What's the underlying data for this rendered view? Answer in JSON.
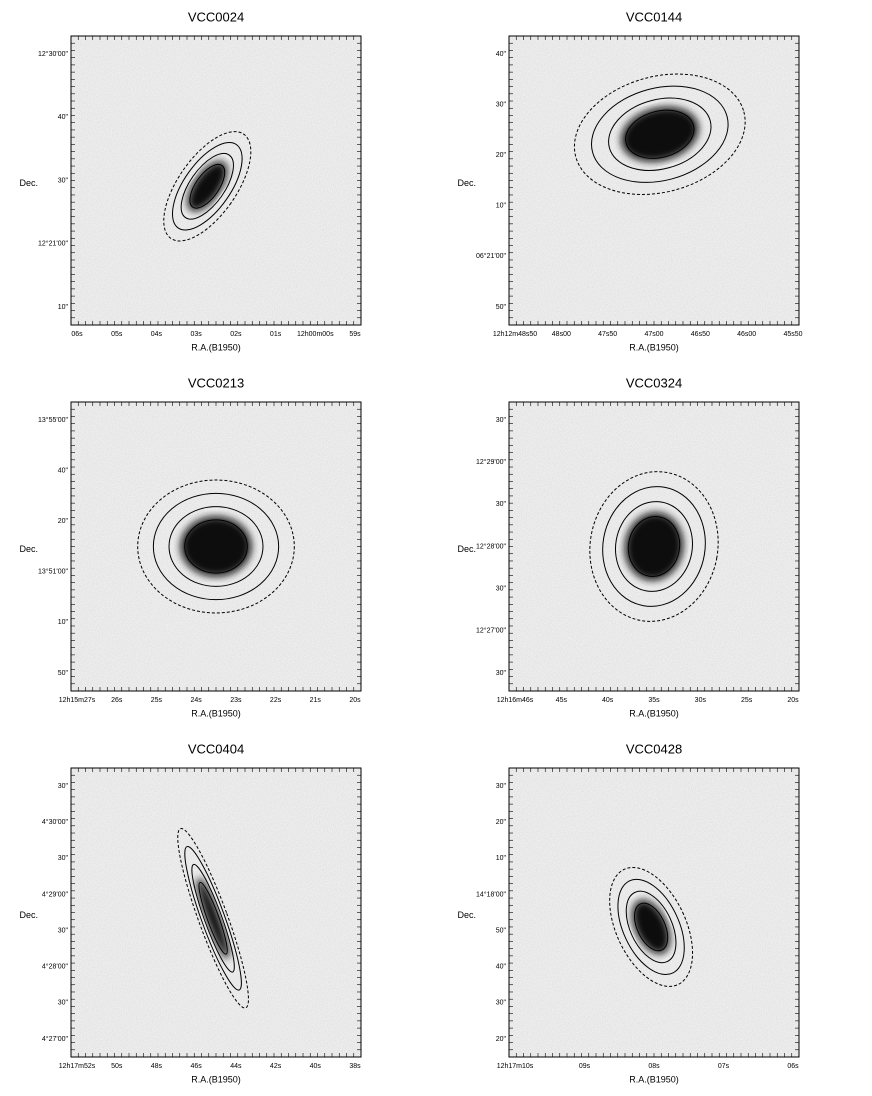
{
  "panels": [
    {
      "title": "VCC0024",
      "xlabel": "R.A.(B1950)",
      "ylabel": "Dec.",
      "xticks": [
        "06s",
        "05s",
        "04s",
        "03s",
        "02s",
        "01s",
        "12h00m00s",
        "59s"
      ],
      "yticks": [
        "12°30'00\"",
        "40\"",
        "30\"",
        "12°21'00\"",
        "10\""
      ]
    },
    {
      "title": "VCC0144",
      "xlabel": "R.A.(B1950)",
      "ylabel": "Dec.",
      "xticks": [
        "12h12m48s50",
        "48s00",
        "47s50",
        "47s00",
        "46s50",
        "46s00",
        "45s50"
      ],
      "yticks": [
        "40\"",
        "30\"",
        "20\"",
        "10\"",
        "06°21'00\"",
        "50\""
      ]
    },
    {
      "title": "VCC0213",
      "xlabel": "R.A.(B1950)",
      "ylabel": "Dec.",
      "xticks": [
        "12h15m27s",
        "26s",
        "25s",
        "24s",
        "23s",
        "22s",
        "21s",
        "20s"
      ],
      "yticks": [
        "13°55'00\"",
        "40\"",
        "20\"",
        "13°51'00\"",
        "10\"",
        "50\""
      ]
    },
    {
      "title": "VCC0324",
      "xlabel": "R.A.(B1950)",
      "ylabel": "Dec.",
      "xticks": [
        "12h16m46s",
        "45s",
        "40s",
        "35s",
        "30s",
        "25s",
        "20s"
      ],
      "yticks": [
        "30\"",
        "12°29'00\"",
        "30\"",
        "12°28'00\"",
        "30\"",
        "12°27'00\"",
        "30\""
      ]
    },
    {
      "title": "VCC0404",
      "xlabel": "R.A.(B1950)",
      "ylabel": "Dec.",
      "xticks": [
        "12h17m52s",
        "50s",
        "48s",
        "46s",
        "44s",
        "42s",
        "40s",
        "38s"
      ],
      "yticks": [
        "30\"",
        "4°30'00\"",
        "30\"",
        "4°29'00\"",
        "30\"",
        "4°28'00\"",
        "30\"",
        "4°27'00\""
      ]
    },
    {
      "title": "VCC0428",
      "xlabel": "R.A.(B1950)",
      "ylabel": "Dec.",
      "xticks": [
        "12h17m10s",
        "09s",
        "08s",
        "07s",
        "06s"
      ],
      "yticks": [
        "30\"",
        "20\"",
        "10\"",
        "14°18'00\"",
        "50\"",
        "40\"",
        "30\"",
        "20\""
      ]
    }
  ]
}
